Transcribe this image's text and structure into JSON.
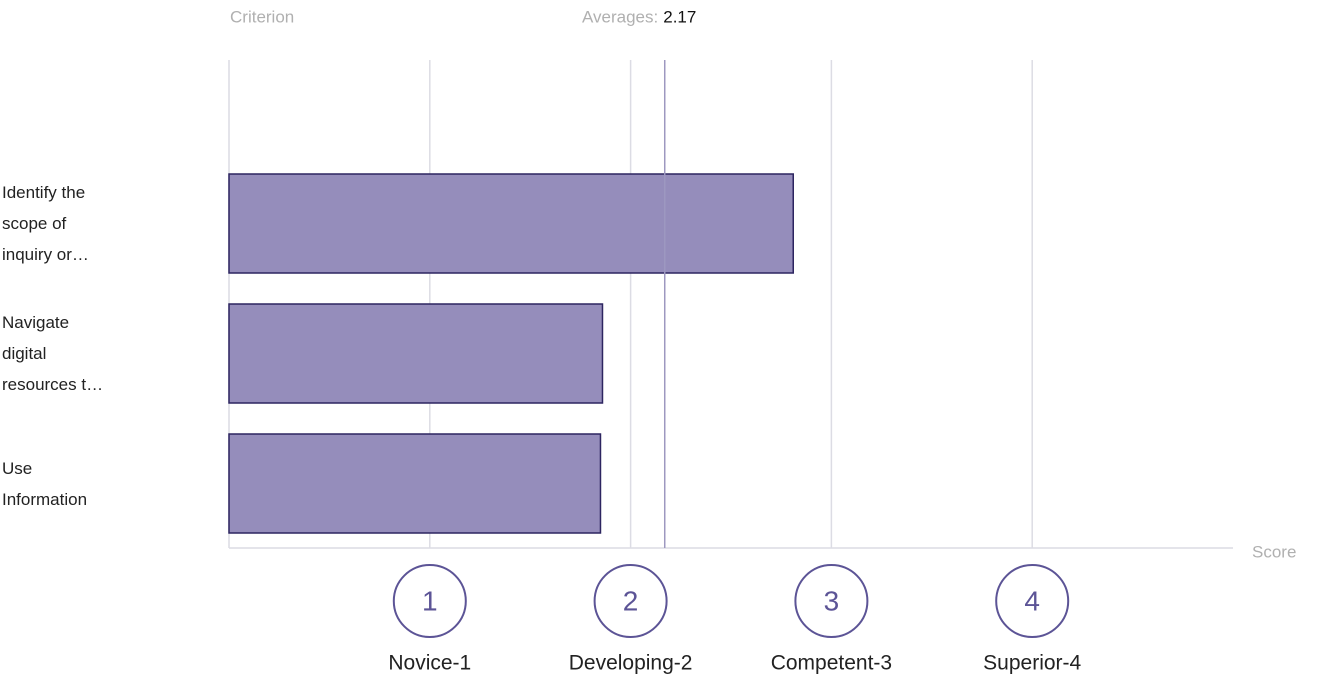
{
  "chart_data": {
    "type": "bar",
    "orientation": "horizontal",
    "header": "Criterion",
    "average_label": "Averages:",
    "average": 2.17,
    "categories": [
      "Identify the scope of inquiry or…",
      "Navigate digital resources t…",
      "Use Information"
    ],
    "values": [
      2.81,
      1.86,
      1.85
    ],
    "color": "#958dbb",
    "edge_color": "#2d2560",
    "xlabel": "Score",
    "xlim": [
      0,
      5
    ],
    "xticks": [
      1,
      2,
      3,
      4
    ],
    "xtick_names": [
      "Novice-1",
      "Developing-2",
      "Competent-3",
      "Superior-4"
    ],
    "grid": true
  }
}
